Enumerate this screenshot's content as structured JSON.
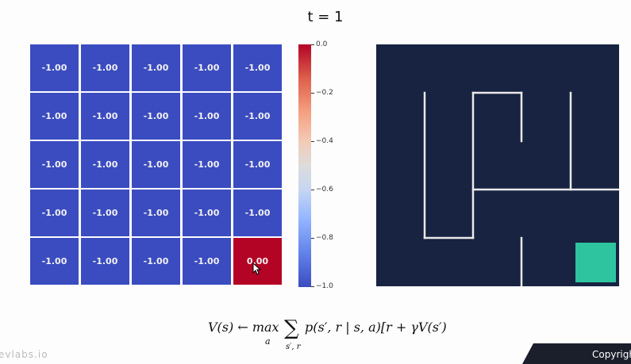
{
  "title": "t = 1",
  "grid": {
    "rows": [
      [
        "-1.00",
        "-1.00",
        "-1.00",
        "-1.00",
        "-1.00"
      ],
      [
        "-1.00",
        "-1.00",
        "-1.00",
        "-1.00",
        "-1.00"
      ],
      [
        "-1.00",
        "-1.00",
        "-1.00",
        "-1.00",
        "-1.00"
      ],
      [
        "-1.00",
        "-1.00",
        "-1.00",
        "-1.00",
        "-1.00"
      ],
      [
        "-1.00",
        "-1.00",
        "-1.00",
        "-1.00",
        "0.00"
      ]
    ],
    "low_color": "#3b4cc0",
    "high_color": "#b40426"
  },
  "colorbar": {
    "ticks": [
      "0.0",
      "−0.2",
      "−0.4",
      "−0.6",
      "−0.8",
      "−1.0"
    ],
    "range": [
      -1.0,
      0.0
    ]
  },
  "maze": {
    "background": "#172340",
    "wall_color": "#e9e9ea",
    "goal_color": "#2ec4a0"
  },
  "formula": {
    "lhs": "V(s) ← max",
    "max_sub": "a",
    "sum_sub": "s′, r",
    "rhs": "p(s′, r | s, a)[r + γV(s′)]"
  },
  "footer": {
    "brand": "evlabs.io",
    "copyright": "Copyrigh"
  }
}
